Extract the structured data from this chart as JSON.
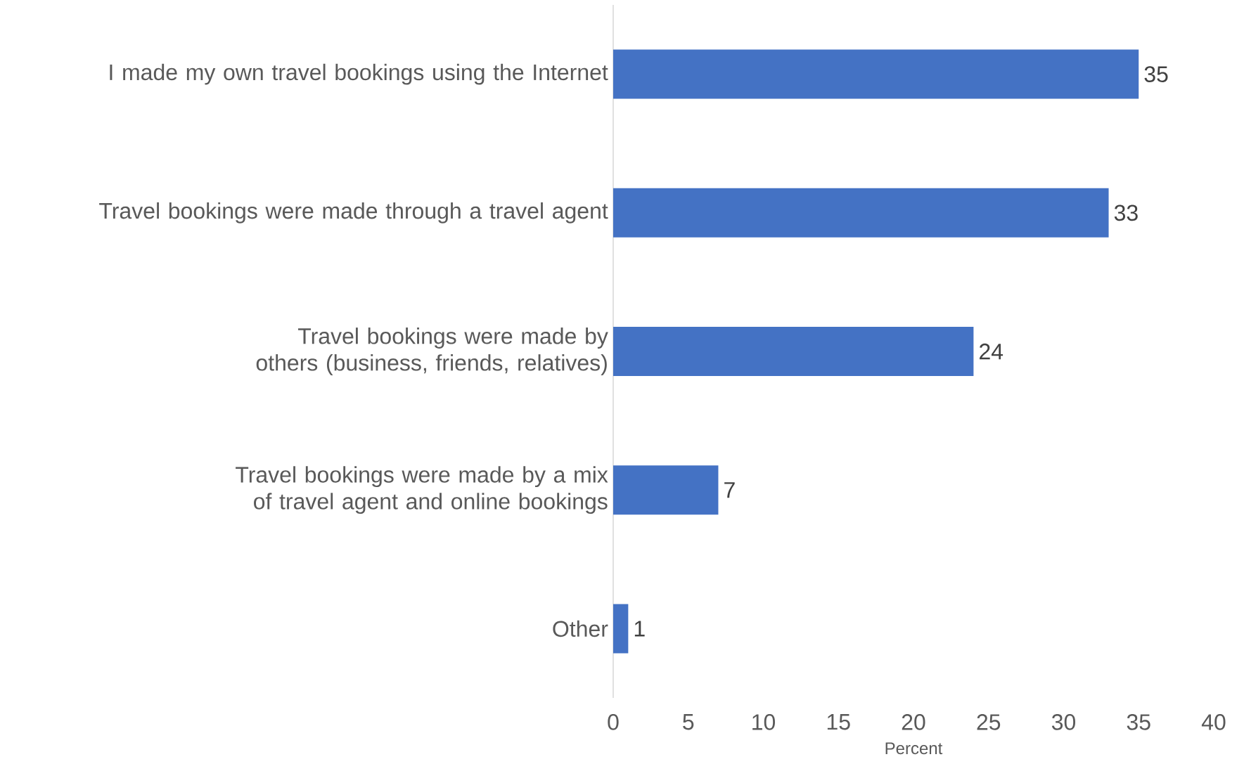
{
  "chart_data": {
    "type": "bar",
    "orientation": "horizontal",
    "xlabel": "Percent",
    "categories": [
      "I made my own travel bookings using the Internet",
      "Travel bookings were made through a travel agent",
      "Travel bookings were made by others (business, friends, relatives)",
      "Travel bookings were made by a mix of travel agent and online bookings",
      "Other"
    ],
    "values": [
      35,
      33,
      24,
      7,
      1
    ],
    "color": "#4472c4",
    "xlim": [
      0,
      40
    ],
    "xticks": [
      0,
      5,
      10,
      15,
      20,
      25,
      30,
      35,
      40
    ],
    "data_labels": true
  }
}
